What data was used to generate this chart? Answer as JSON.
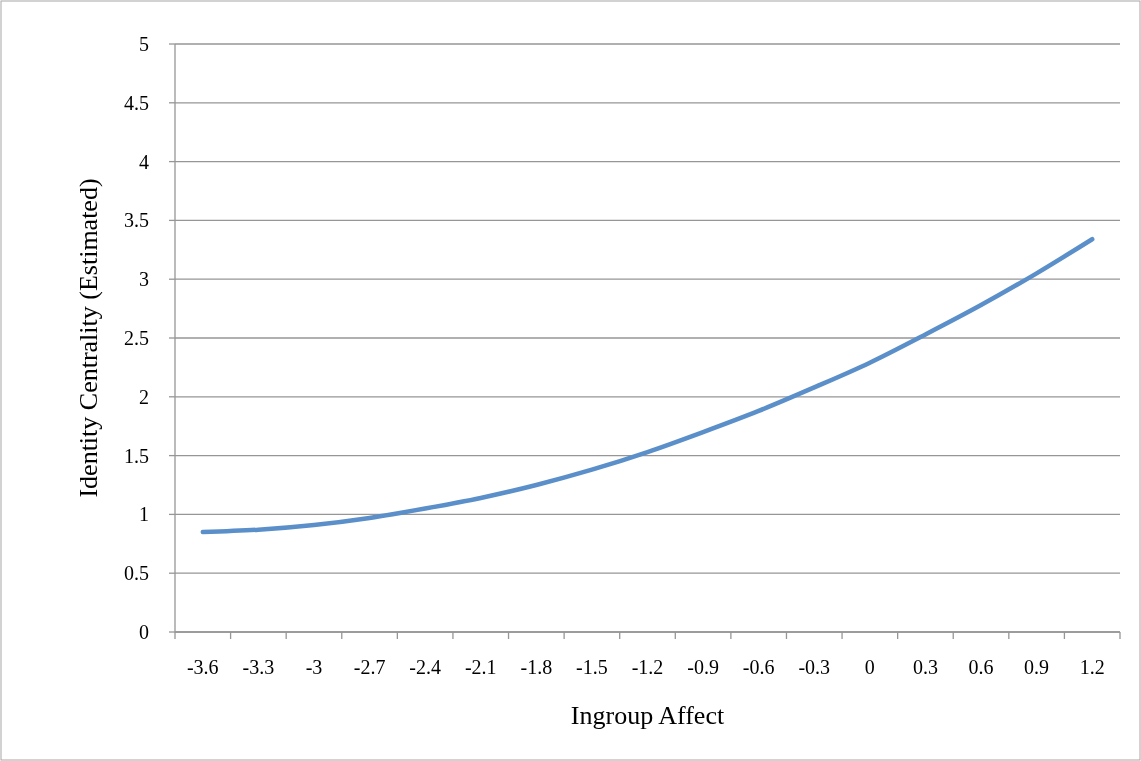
{
  "chart_data": {
    "type": "line",
    "xlabel": "Ingroup Affect",
    "ylabel": "Identity Centrality (Estimated)",
    "categories": [
      "-3.6",
      "-3.3",
      "-3",
      "-2.7",
      "-2.4",
      "-2.1",
      "-1.8",
      "-1.5",
      "-1.2",
      "-0.9",
      "-0.6",
      "-0.3",
      "0",
      "0.3",
      "0.6",
      "0.9",
      "1.2"
    ],
    "series": [
      {
        "color": "#5b8fc9",
        "values": [
          0.85,
          0.87,
          0.91,
          0.97,
          1.05,
          1.14,
          1.25,
          1.38,
          1.53,
          1.7,
          1.88,
          2.08,
          2.29,
          2.53,
          2.78,
          3.05,
          3.34
        ]
      }
    ],
    "ylim": [
      0,
      5
    ],
    "yticks": [
      0,
      0.5,
      1,
      1.5,
      2,
      2.5,
      3,
      3.5,
      4,
      4.5,
      5
    ],
    "grid": "y",
    "marker": "none",
    "line_style": "solid"
  }
}
